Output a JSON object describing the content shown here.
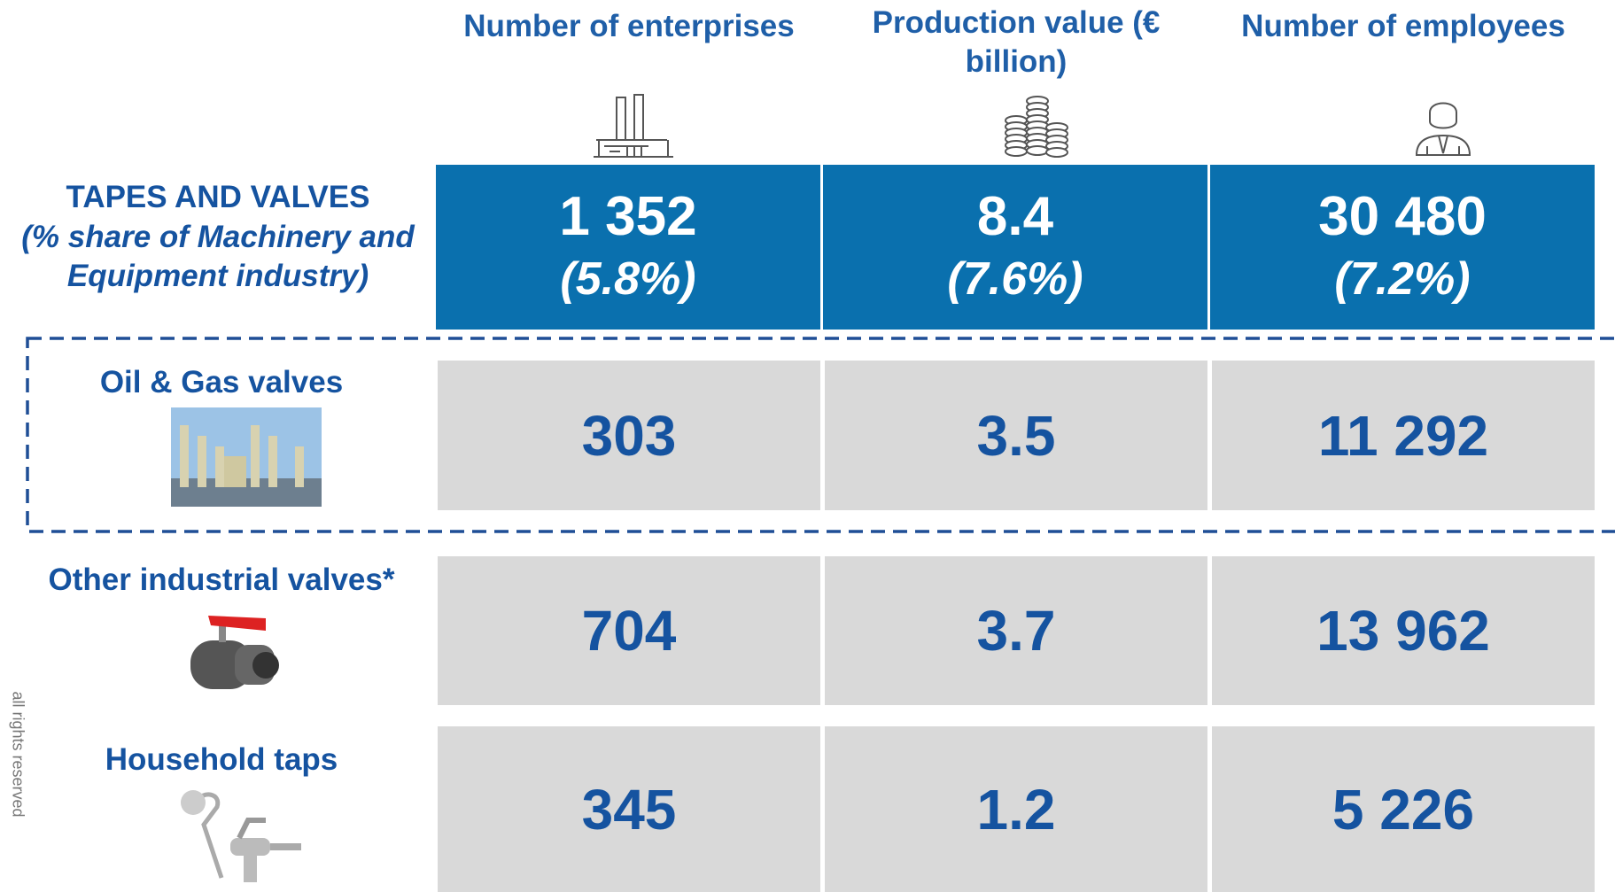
{
  "columns": [
    "Number of enterprises",
    "Production value (€ billion)",
    "Number of employees"
  ],
  "summary": {
    "label": "TAPES AND VALVES",
    "sublabel": "(% share of Machinery and Equipment industry)",
    "values": [
      "1 352",
      "8.4",
      "30 480"
    ],
    "shares": [
      "(5.8%)",
      "(7.6%)",
      "(7.2%)"
    ]
  },
  "rows": [
    {
      "label": "Oil & Gas valves",
      "values": [
        "303",
        "3.5",
        "11 292"
      ]
    },
    {
      "label": "Other industrial valves*",
      "values": [
        "704",
        "3.7",
        "13 962"
      ]
    },
    {
      "label": "Household taps",
      "values": [
        "345",
        "1.2",
        "5 226"
      ]
    }
  ],
  "side_text": "all rights reserved"
}
